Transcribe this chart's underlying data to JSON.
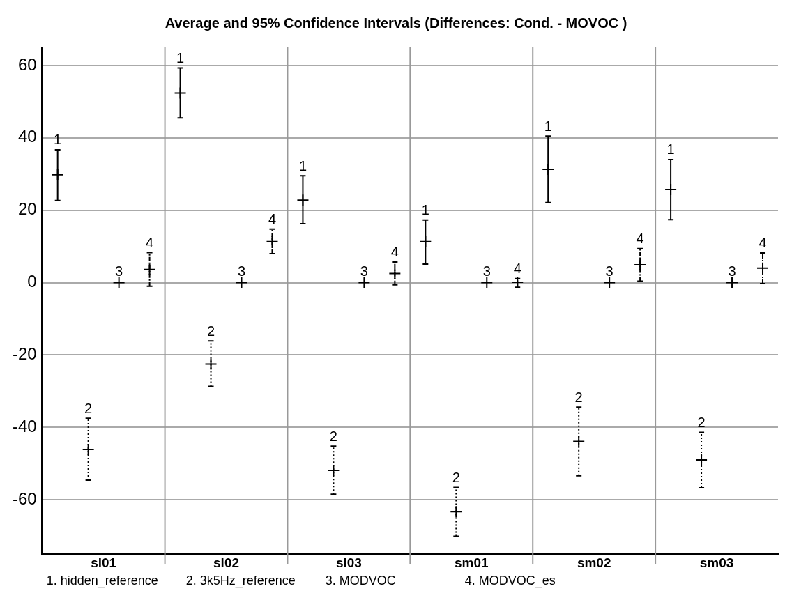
{
  "chart_data": {
    "type": "scatter",
    "title": "Average and 95% Confidence Intervals (Differences: Cond. - MOVOC )",
    "categories": [
      null,
      null,
      null,
      null,
      null,
      null,
      null,
      null,
      null,
      null,
      null,
      null,
      null,
      null,
      null,
      null,
      null,
      null,
      null,
      null,
      null,
      null,
      null,
      null
    ],
    "ylim": [
      -75,
      65
    ],
    "yticks": [
      -60,
      -40,
      -20,
      0,
      20,
      40,
      60
    ],
    "grid": true,
    "marker": "cross",
    "series": [
      {
        "name": "1",
        "color": "#000000",
        "line_style": "solid",
        "values": [
          29.8,
          null,
          null,
          null,
          52.4,
          null,
          null,
          null,
          22.8,
          null,
          null,
          null,
          11.3,
          null,
          null,
          null,
          31.3,
          null,
          null,
          null,
          25.7,
          null,
          null,
          null
        ],
        "errors": [
          [
            22.7,
            36.7
          ],
          null,
          null,
          null,
          [
            45.5,
            59.3
          ],
          null,
          null,
          null,
          [
            16.3,
            29.5
          ],
          null,
          null,
          null,
          [
            5.1,
            17.3
          ],
          null,
          null,
          null,
          [
            22.1,
            40.5
          ],
          null,
          null,
          null,
          [
            17.4,
            34.0
          ],
          null,
          null,
          null
        ]
      },
      {
        "name": "2",
        "color": "#000000",
        "line_style": "dotted",
        "values": [
          null,
          -46.1,
          null,
          null,
          null,
          -22.5,
          null,
          null,
          null,
          -51.9,
          null,
          null,
          null,
          -63.3,
          null,
          null,
          null,
          -43.9,
          null,
          null,
          null,
          -49.0,
          null,
          null
        ],
        "errors": [
          null,
          [
            -54.6,
            -37.5
          ],
          null,
          null,
          null,
          [
            -28.7,
            -16.1
          ],
          null,
          null,
          null,
          [
            -58.5,
            -45.2
          ],
          null,
          null,
          null,
          [
            -70.1,
            -56.6
          ],
          null,
          null,
          null,
          [
            -53.4,
            -34.4
          ],
          null,
          null,
          null,
          [
            -56.7,
            -41.4
          ],
          null,
          null
        ]
      },
      {
        "name": "3",
        "color": "#000000",
        "line_style": "solid",
        "values": [
          null,
          null,
          0,
          null,
          null,
          null,
          0,
          null,
          null,
          null,
          0,
          null,
          null,
          null,
          0,
          null,
          null,
          null,
          0,
          null,
          null,
          null,
          0,
          null
        ]
      },
      {
        "name": "4",
        "color": "#000000",
        "line_style": "dashed",
        "values": [
          null,
          null,
          null,
          3.6,
          null,
          null,
          null,
          11.3,
          null,
          null,
          null,
          2.5,
          null,
          null,
          null,
          0.1,
          null,
          null,
          null,
          4.9,
          null,
          null,
          null,
          4.0
        ],
        "errors": [
          null,
          null,
          null,
          [
            -1.0,
            8.3
          ],
          null,
          null,
          null,
          [
            8.0,
            14.8
          ],
          null,
          null,
          null,
          [
            -0.6,
            5.7
          ],
          null,
          null,
          null,
          [
            -1.3,
            1.1
          ],
          null,
          null,
          null,
          [
            0.4,
            9.4
          ],
          null,
          null,
          null,
          [
            -0.3,
            8.2
          ]
        ]
      }
    ],
    "annotations": [
      "si01",
      "si02",
      "si03",
      "sm01",
      "sm02",
      "sm03",
      "1. hidden_reference",
      "2. 3k5Hz_reference",
      "3. MODVOC",
      "4. MODVOC_es"
    ]
  }
}
